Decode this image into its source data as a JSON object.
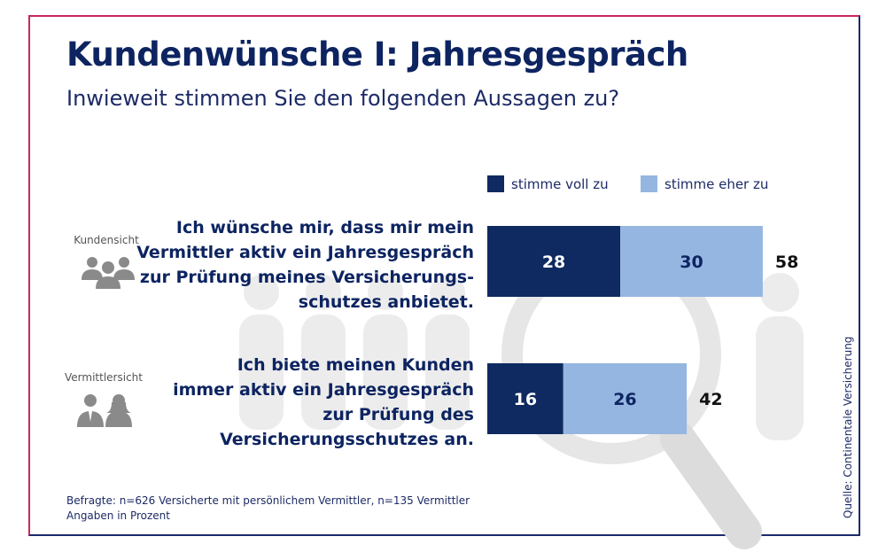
{
  "title": "Kundenwünsche I: Jahresgespräch",
  "subtitle": "Inwieweit stimmen Sie den folgenden Aussagen zu?",
  "legend": {
    "voll": "stimme voll zu",
    "eher": "stimme eher zu"
  },
  "rows": [
    {
      "side_label": "Kundensicht",
      "icon": "group-people-icon",
      "statement": [
        "Ich wünsche mir, dass mir mein",
        "Vermittler aktiv ein Jahresgespräch",
        "zur Prüfung meines Versicherungs-",
        "schutzes anbietet."
      ]
    },
    {
      "side_label": "Vermittlersicht",
      "icon": "agents-icon",
      "statement": [
        "Ich biete meinen Kunden",
        "immer aktiv ein Jahresgespräch",
        "zur Prüfung des",
        "Versicherungsschutzes an."
      ]
    }
  ],
  "chart_data": {
    "type": "bar",
    "orientation": "horizontal",
    "stacked": true,
    "categories": [
      "Kundensicht",
      "Vermittlersicht"
    ],
    "series": [
      {
        "name": "stimme voll zu",
        "values": [
          28,
          16
        ],
        "color": "#0f2a60"
      },
      {
        "name": "stimme eher zu",
        "values": [
          30,
          26
        ],
        "color": "#94b6e0"
      }
    ],
    "totals": [
      58,
      42
    ],
    "legend_position": "top"
  },
  "footnote": {
    "line1": "Befragte: n=626 Versicherte mit persönlichem Vermittler, n=135 Vermittler",
    "line2": "Angaben in Prozent"
  },
  "source": "Quelle: Continentale Versicherung",
  "colors": {
    "title": "#0d2461",
    "voll": "#0f2a60",
    "eher": "#94b6e0",
    "background_art": "#e9e9e9"
  }
}
